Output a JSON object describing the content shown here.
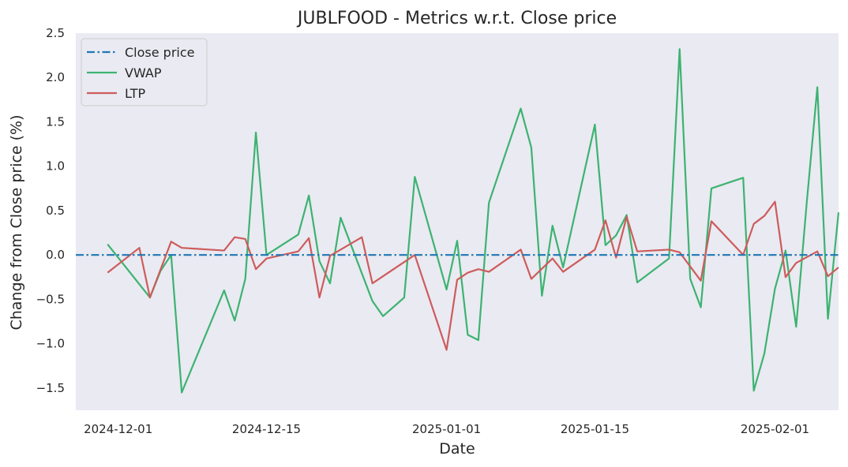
{
  "chart_data": {
    "type": "line",
    "title": "JUBLFOOD - Metrics w.r.t. Close price",
    "xlabel": "Date",
    "ylabel": "Change from Close price (%)",
    "ylim": [
      -1.75,
      2.5
    ],
    "xlim": [
      "2024-11-27",
      "2025-02-07"
    ],
    "yticks": [
      -1.5,
      -1.0,
      -0.5,
      0.0,
      0.5,
      1.0,
      1.5,
      2.0,
      2.5
    ],
    "ytick_labels": [
      "−1.5",
      "−1.0",
      "−0.5",
      "0.0",
      "0.5",
      "1.0",
      "1.5",
      "2.0",
      "2.5"
    ],
    "xticks": [
      "2024-12-01",
      "2024-12-15",
      "2025-01-01",
      "2025-01-15",
      "2025-02-01"
    ],
    "grid": false,
    "legend_position": "top-left",
    "colors": {
      "close": "#1f77b4",
      "vwap": "#3cb371",
      "ltp": "#cd5c5c",
      "plot_bg": "#eaeaf2"
    },
    "series": [
      {
        "name": "Close price",
        "style": "dash-dot",
        "color": "#1f77b4",
        "x": [
          "2024-11-27",
          "2025-02-07"
        ],
        "y": [
          0.0,
          0.0
        ]
      },
      {
        "name": "VWAP",
        "style": "solid",
        "color": "#3cb371",
        "x": [
          "2024-11-30",
          "2024-12-03",
          "2024-12-04",
          "2024-12-05",
          "2024-12-06",
          "2024-12-07",
          "2024-12-11",
          "2024-12-12",
          "2024-12-13",
          "2024-12-14",
          "2024-12-15",
          "2024-12-18",
          "2024-12-19",
          "2024-12-20",
          "2024-12-21",
          "2024-12-22",
          "2024-12-25",
          "2024-12-26",
          "2024-12-28",
          "2024-12-29",
          "2025-01-01",
          "2025-01-02",
          "2025-01-03",
          "2025-01-04",
          "2025-01-05",
          "2025-01-08",
          "2025-01-09",
          "2025-01-10",
          "2025-01-11",
          "2025-01-12",
          "2025-01-15",
          "2025-01-16",
          "2025-01-17",
          "2025-01-18",
          "2025-01-19",
          "2025-01-22",
          "2025-01-23",
          "2025-01-24",
          "2025-01-25",
          "2025-01-26",
          "2025-01-29",
          "2025-01-30",
          "2025-01-31",
          "2025-02-01",
          "2025-02-02",
          "2025-02-03",
          "2025-02-04",
          "2025-02-05",
          "2025-02-06",
          "2025-02-07"
        ],
        "y": [
          0.12,
          -0.33,
          -0.48,
          -0.18,
          0.0,
          -1.55,
          -0.4,
          -0.74,
          -0.27,
          1.38,
          0.0,
          0.23,
          0.67,
          -0.07,
          -0.32,
          0.42,
          -0.52,
          -0.69,
          -0.48,
          0.88,
          -0.39,
          0.16,
          -0.9,
          -0.96,
          0.59,
          1.65,
          1.21,
          -0.46,
          0.33,
          -0.14,
          1.47,
          0.11,
          0.22,
          0.45,
          -0.31,
          -0.04,
          2.32,
          -0.27,
          -0.59,
          0.75,
          0.87,
          -1.53,
          -1.11,
          -0.38,
          0.05,
          -0.81,
          0.59,
          1.89,
          -0.72,
          0.48
        ]
      },
      {
        "name": "LTP",
        "style": "solid",
        "color": "#cd5c5c",
        "x": [
          "2024-11-30",
          "2024-12-03",
          "2024-12-04",
          "2024-12-06",
          "2024-12-07",
          "2024-12-11",
          "2024-12-12",
          "2024-12-13",
          "2024-12-14",
          "2024-12-15",
          "2024-12-18",
          "2024-12-19",
          "2024-12-20",
          "2024-12-21",
          "2024-12-24",
          "2024-12-25",
          "2024-12-28",
          "2024-12-29",
          "2025-01-01",
          "2025-01-02",
          "2025-01-03",
          "2025-01-04",
          "2025-01-05",
          "2025-01-08",
          "2025-01-09",
          "2025-01-11",
          "2025-01-12",
          "2025-01-15",
          "2025-01-16",
          "2025-01-17",
          "2025-01-18",
          "2025-01-19",
          "2025-01-22",
          "2025-01-23",
          "2025-01-25",
          "2025-01-26",
          "2025-01-29",
          "2025-01-30",
          "2025-01-31",
          "2025-02-01",
          "2025-02-02",
          "2025-02-03",
          "2025-02-05",
          "2025-02-06",
          "2025-02-07"
        ],
        "y": [
          -0.2,
          0.08,
          -0.48,
          0.15,
          0.08,
          0.05,
          0.2,
          0.18,
          -0.16,
          -0.04,
          0.04,
          0.19,
          -0.48,
          -0.01,
          0.2,
          -0.32,
          -0.08,
          0.0,
          -1.07,
          -0.28,
          -0.2,
          -0.16,
          -0.19,
          0.06,
          -0.27,
          -0.04,
          -0.19,
          0.06,
          0.39,
          -0.03,
          0.43,
          0.04,
          0.06,
          0.03,
          -0.29,
          0.38,
          0.0,
          0.35,
          0.44,
          0.6,
          -0.25,
          -0.09,
          0.04,
          -0.24,
          -0.14
        ]
      }
    ]
  }
}
